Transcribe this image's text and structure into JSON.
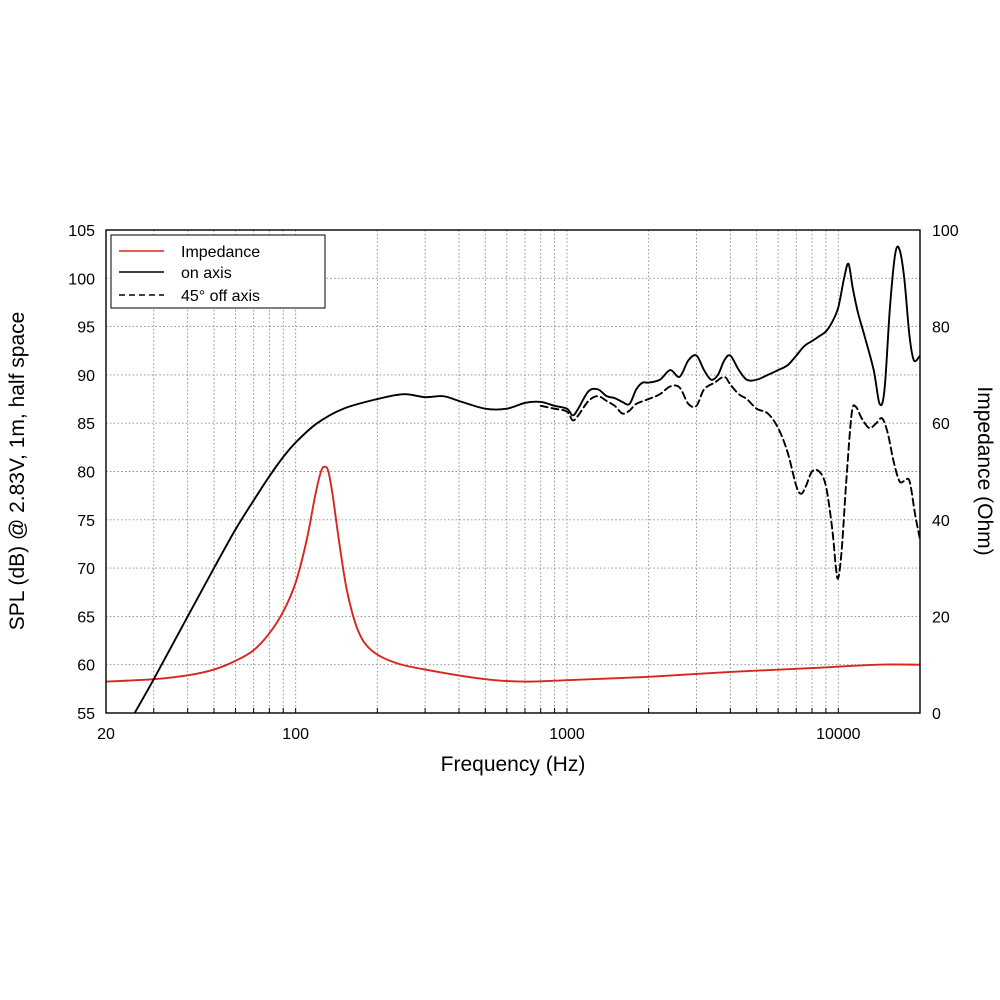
{
  "chart_data": {
    "type": "line",
    "xlabel": "Frequency (Hz)",
    "ylabel_left": "SPL (dB) @ 2.83V, 1m, half space",
    "ylabel_right": "Impedance (Ohm)",
    "x_scale": "log",
    "xlim": [
      20,
      20000
    ],
    "ylim_left": [
      55,
      105
    ],
    "ylim_right": [
      0,
      100
    ],
    "x_tick_labels": [
      {
        "value": 20,
        "label": "20"
      },
      {
        "value": 100,
        "label": "100"
      },
      {
        "value": 1000,
        "label": "1000"
      },
      {
        "value": 10000,
        "label": "10000"
      }
    ],
    "y_left_ticks": [
      55,
      60,
      65,
      70,
      75,
      80,
      85,
      90,
      95,
      100,
      105
    ],
    "y_right_ticks": [
      0,
      20,
      40,
      60,
      80,
      100
    ],
    "grid": true,
    "legend_position": "top-left",
    "series": [
      {
        "name": "Impedance",
        "axis": "right",
        "color": "#d7261e",
        "style": "solid",
        "points": [
          [
            20,
            6.5
          ],
          [
            30,
            7
          ],
          [
            40,
            7.8
          ],
          [
            50,
            9
          ],
          [
            60,
            10.8
          ],
          [
            70,
            13
          ],
          [
            80,
            16.5
          ],
          [
            90,
            21
          ],
          [
            100,
            27
          ],
          [
            110,
            36
          ],
          [
            118,
            45
          ],
          [
            124,
            50
          ],
          [
            128,
            51
          ],
          [
            132,
            50
          ],
          [
            137,
            45
          ],
          [
            145,
            35
          ],
          [
            155,
            25
          ],
          [
            170,
            17
          ],
          [
            190,
            13
          ],
          [
            230,
            10.5
          ],
          [
            300,
            9
          ],
          [
            500,
            7
          ],
          [
            700,
            6.5
          ],
          [
            1000,
            6.8
          ],
          [
            2000,
            7.5
          ],
          [
            4000,
            8.5
          ],
          [
            8000,
            9.3
          ],
          [
            14000,
            10
          ],
          [
            20000,
            10
          ]
        ]
      },
      {
        "name": "on axis",
        "axis": "left",
        "color": "#000000",
        "style": "solid",
        "points": [
          [
            25.5,
            55
          ],
          [
            30,
            58.5
          ],
          [
            40,
            65
          ],
          [
            50,
            70
          ],
          [
            60,
            74
          ],
          [
            70,
            77
          ],
          [
            80,
            79.5
          ],
          [
            90,
            81.5
          ],
          [
            100,
            83
          ],
          [
            120,
            85
          ],
          [
            150,
            86.5
          ],
          [
            200,
            87.5
          ],
          [
            250,
            88
          ],
          [
            300,
            87.7
          ],
          [
            350,
            87.8
          ],
          [
            400,
            87.3
          ],
          [
            500,
            86.5
          ],
          [
            600,
            86.5
          ],
          [
            700,
            87.1
          ],
          [
            800,
            87.2
          ],
          [
            900,
            86.8
          ],
          [
            1000,
            86.5
          ],
          [
            1050,
            85.8
          ],
          [
            1100,
            86.5
          ],
          [
            1200,
            88.3
          ],
          [
            1300,
            88.5
          ],
          [
            1400,
            87.8
          ],
          [
            1500,
            87.6
          ],
          [
            1600,
            87.2
          ],
          [
            1700,
            87
          ],
          [
            1800,
            88.5
          ],
          [
            1900,
            89.2
          ],
          [
            2000,
            89.2
          ],
          [
            2200,
            89.5
          ],
          [
            2400,
            90.5
          ],
          [
            2600,
            89.8
          ],
          [
            2800,
            91.5
          ],
          [
            3000,
            92
          ],
          [
            3200,
            90.5
          ],
          [
            3400,
            89.5
          ],
          [
            3600,
            90
          ],
          [
            3800,
            91.5
          ],
          [
            4000,
            92
          ],
          [
            4300,
            90.5
          ],
          [
            4600,
            89.5
          ],
          [
            5000,
            89.5
          ],
          [
            5500,
            90
          ],
          [
            6000,
            90.5
          ],
          [
            6500,
            91
          ],
          [
            7000,
            92
          ],
          [
            7500,
            93
          ],
          [
            8000,
            93.5
          ],
          [
            8500,
            94
          ],
          [
            9000,
            94.5
          ],
          [
            9500,
            95.5
          ],
          [
            10000,
            97
          ],
          [
            10500,
            100
          ],
          [
            10900,
            101.5
          ],
          [
            11300,
            99
          ],
          [
            11800,
            96.5
          ],
          [
            12500,
            94
          ],
          [
            13500,
            90.5
          ],
          [
            14200,
            87
          ],
          [
            14800,
            88.5
          ],
          [
            15500,
            97
          ],
          [
            16200,
            102.5
          ],
          [
            16800,
            103
          ],
          [
            17500,
            100
          ],
          [
            18300,
            94
          ],
          [
            19000,
            91.5
          ],
          [
            20000,
            92
          ]
        ]
      },
      {
        "name": "45° off axis",
        "axis": "left",
        "color": "#000000",
        "style": "dashed",
        "points": [
          [
            800,
            86.8
          ],
          [
            900,
            86.5
          ],
          [
            1000,
            86.2
          ],
          [
            1050,
            85.3
          ],
          [
            1100,
            85.8
          ],
          [
            1200,
            87.3
          ],
          [
            1300,
            87.8
          ],
          [
            1400,
            87.3
          ],
          [
            1500,
            86.8
          ],
          [
            1600,
            86
          ],
          [
            1700,
            86.3
          ],
          [
            1800,
            87
          ],
          [
            2000,
            87.5
          ],
          [
            2200,
            88
          ],
          [
            2400,
            88.8
          ],
          [
            2600,
            88.7
          ],
          [
            2800,
            87
          ],
          [
            3000,
            86.8
          ],
          [
            3200,
            88.5
          ],
          [
            3500,
            89.2
          ],
          [
            3800,
            89.8
          ],
          [
            4000,
            89
          ],
          [
            4300,
            88
          ],
          [
            4600,
            87.5
          ],
          [
            5000,
            86.5
          ],
          [
            5500,
            86
          ],
          [
            6000,
            84.5
          ],
          [
            6500,
            82
          ],
          [
            7000,
            78.5
          ],
          [
            7300,
            77.7
          ],
          [
            7600,
            78.5
          ],
          [
            8000,
            80
          ],
          [
            8500,
            80
          ],
          [
            9000,
            78.5
          ],
          [
            9500,
            74
          ],
          [
            9800,
            70
          ],
          [
            10000,
            69
          ],
          [
            10300,
            72
          ],
          [
            10700,
            79
          ],
          [
            11200,
            86
          ],
          [
            11600,
            86.7
          ],
          [
            12200,
            85.5
          ],
          [
            13000,
            84.5
          ],
          [
            13800,
            85
          ],
          [
            14500,
            85.5
          ],
          [
            15200,
            84
          ],
          [
            16000,
            81
          ],
          [
            16800,
            79
          ],
          [
            17500,
            79
          ],
          [
            18300,
            79
          ],
          [
            19200,
            75.5
          ],
          [
            20000,
            73
          ]
        ]
      }
    ]
  }
}
